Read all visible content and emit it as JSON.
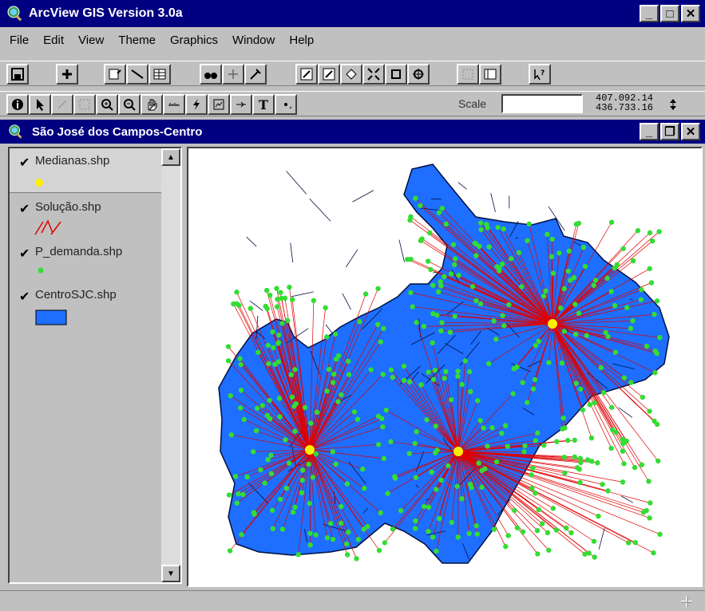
{
  "app": {
    "title": "ArcView GIS Version 3.0a",
    "icon": "globe-magnifier-icon"
  },
  "menu": [
    "File",
    "Edit",
    "View",
    "Theme",
    "Graphics",
    "Window",
    "Help"
  ],
  "toolbar2": {
    "scale_label": "Scale",
    "scale_value": "",
    "coord_x": "407.092.14",
    "coord_y": "436.733.16"
  },
  "view": {
    "title": "São José dos Campos-Centro",
    "icon": "globe-magnifier-icon"
  },
  "legend": [
    {
      "name": "Medianas.shp",
      "checked": true,
      "symbol": "yellow-point"
    },
    {
      "name": "Solução.shp",
      "checked": true,
      "symbol": "red-lines"
    },
    {
      "name": "P_demanda.shp",
      "checked": true,
      "symbol": "green-point"
    },
    {
      "name": "CentroSJC.shp",
      "checked": true,
      "symbol": "blue-polygon"
    }
  ],
  "colors": {
    "title_bar": "#000080",
    "polygon_fill": "#1e6eff",
    "demand_point": "#33dd33",
    "solution_line": "#e00000",
    "median_point": "#ffee00"
  }
}
